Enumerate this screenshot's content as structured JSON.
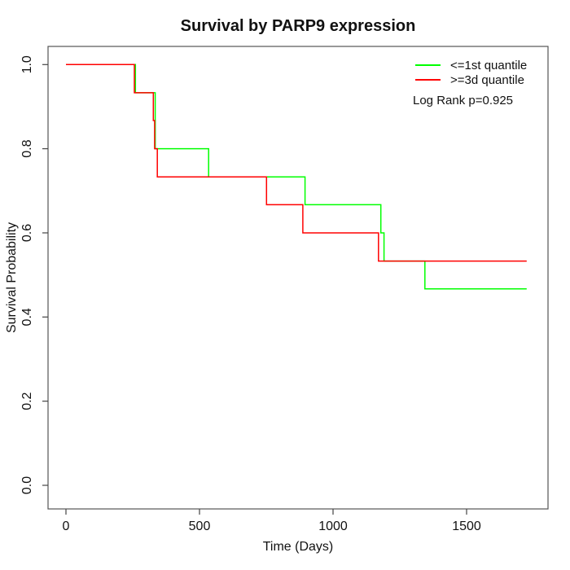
{
  "title": "Survival by PARP9 expression",
  "axes": {
    "xlabel": "Time (Days)",
    "ylabel": "Survival Probability",
    "x_tick_labels": [
      "0",
      "500",
      "1000",
      "1500"
    ],
    "y_tick_labels": [
      "0.0",
      "0.2",
      "0.4",
      "0.6",
      "0.8",
      "1.0"
    ]
  },
  "legend": {
    "items": [
      {
        "label": "<=1st quantile",
        "color": "#00ff00"
      },
      {
        "label": ">=3d quantile",
        "color": "#ff0000"
      }
    ]
  },
  "annotation": "Log Rank p=0.925",
  "chart_data": {
    "type": "line",
    "subtype": "kaplan-meier-step",
    "title": "Survival by PARP9 expression",
    "xlabel": "Time (Days)",
    "ylabel": "Survival Probability",
    "xlim": [
      -70,
      1805
    ],
    "ylim": [
      0,
      1
    ],
    "x_ticks": [
      0,
      500,
      1000,
      1500
    ],
    "y_ticks": [
      0.0,
      0.2,
      0.4,
      0.6,
      0.8,
      1.0
    ],
    "grid": false,
    "legend_position": "top-right",
    "annotation": "Log Rank p=0.925",
    "series": [
      {
        "name": "<=1st quantile",
        "color": "#00ff00",
        "event_times": [
          0,
          260,
          334,
          534,
          895,
          1179,
          1191,
          1344
        ],
        "survival": [
          1.0,
          0.933,
          0.8,
          0.733,
          0.667,
          0.6,
          0.533,
          0.467
        ],
        "end_time": 1725
      },
      {
        "name": ">=3d quantile",
        "color": "#ff0000",
        "event_times": [
          0,
          256,
          327,
          332,
          342,
          751,
          887,
          1170
        ],
        "survival": [
          1.0,
          0.933,
          0.867,
          0.8,
          0.733,
          0.667,
          0.6,
          0.533
        ],
        "end_time": 1725
      }
    ]
  }
}
